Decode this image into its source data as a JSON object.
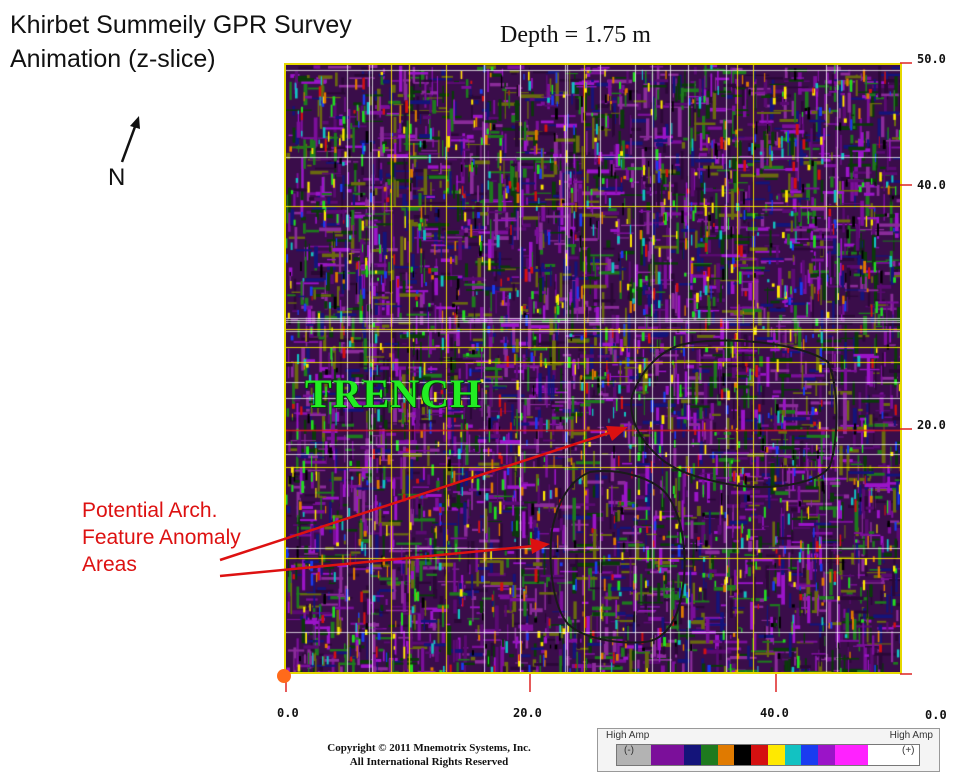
{
  "title": {
    "line1": "Khirbet Summeily GPR Survey",
    "line2": "Animation (z-slice)"
  },
  "depth_label": "Depth = 1.75 m",
  "north_label": "N",
  "trench_label": "TRENCH",
  "anomaly_label": {
    "line1": "Potential Arch.",
    "line2": "Feature Anomaly",
    "line3": "Areas"
  },
  "axes": {
    "x_ticks": [
      "0.0",
      "20.0",
      "40.0",
      "0.0"
    ],
    "y_ticks": [
      "50.0",
      "40.0",
      "20.0"
    ]
  },
  "copyright": {
    "line1": "Copyright © 2011 Mnemotrix Systems, Inc.",
    "line2": "All International Rights Reserved"
  },
  "colorbar": {
    "left_label": "High Amp",
    "right_label": "High Amp",
    "neg_sign": "(-)",
    "pos_sign": "(+)",
    "colors": [
      "#b3b3b3",
      "#b3b3b3",
      "#7b0f9a",
      "#7b0f9a",
      "#14147a",
      "#1e7a1e",
      "#e07a00",
      "#000000",
      "#d41010",
      "#ffe900",
      "#12c2c2",
      "#1a3cf0",
      "#9b14c8",
      "#ff22ff",
      "#ff22ff",
      "#ffffff",
      "#ffffff",
      "#ffffff"
    ]
  },
  "colors": {
    "title_text": "#111111",
    "anomaly_red": "#dd1111",
    "trench_green": "#22ee22",
    "frame_yellow": "#e5d800",
    "tick_red": "#dd2222",
    "origin_marker": "#ff6a1a"
  }
}
